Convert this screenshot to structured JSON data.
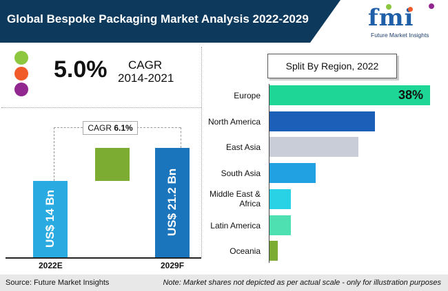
{
  "header": {
    "title": "Global Bespoke Packaging Market Analysis 2022-2029",
    "logo_text": "fmi",
    "logo_subtitle": "Future Market Insights"
  },
  "cagr_panel": {
    "value": "5.0%",
    "label": "CAGR",
    "years": "2014-2021",
    "dot_colors": [
      "#8dc63f",
      "#f15a29",
      "#92278f"
    ]
  },
  "growth_chart": {
    "cagr_label": "CAGR",
    "cagr_value": "6.1%",
    "bars": [
      {
        "year": "2022E",
        "label": "US$ 14 Bn",
        "value": 14,
        "color": "#29abe2"
      },
      {
        "year": "2029F",
        "label": "US$ 21.2 Bn",
        "value": 21.2,
        "color": "#1b75bc"
      }
    ],
    "increment_color": "#7cac32"
  },
  "chart_data": {
    "type": "bar",
    "title": "Split By Region, 2022",
    "categories": [
      "Europe",
      "North America",
      "East Asia",
      "South Asia",
      "Middle East & Africa",
      "Latin America",
      "Oceania"
    ],
    "values": [
      38,
      25,
      21,
      11,
      5,
      5,
      2
    ],
    "value_labels": [
      "38%",
      "",
      "",
      "",
      "",
      "",
      ""
    ],
    "colors": [
      "#1ed796",
      "#1b5fb8",
      "#c9cdd8",
      "#22a1e2",
      "#29d3e5",
      "#4ee0b0",
      "#7cac32"
    ]
  },
  "footer": {
    "source": "Source: Future Market Insights",
    "note": "Note: Market shares not depicted as per actual scale - only for illustration purposes"
  }
}
